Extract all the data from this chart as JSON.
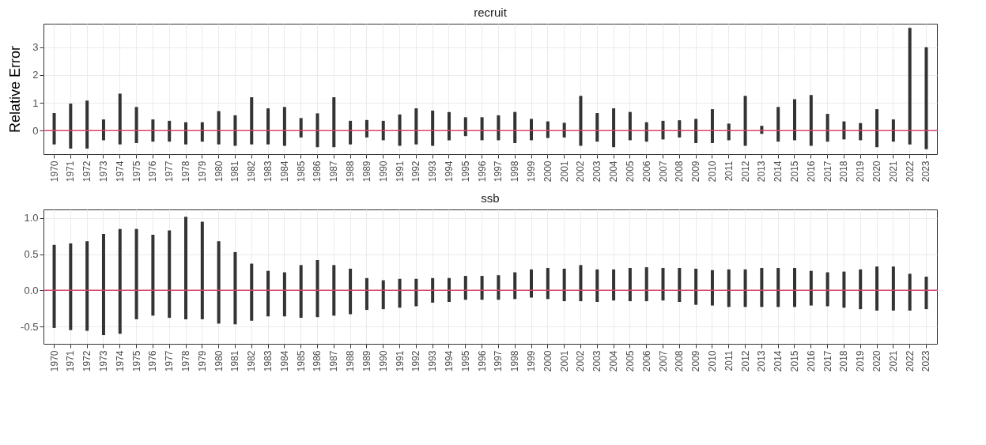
{
  "chart_data": [
    {
      "type": "bar",
      "title": "recruit",
      "ylabel": "Relative Error",
      "color": "#333333",
      "grid": true,
      "categories": [
        "1970",
        "1971",
        "1972",
        "1973",
        "1974",
        "1975",
        "1976",
        "1977",
        "1978",
        "1979",
        "1980",
        "1981",
        "1982",
        "1983",
        "1984",
        "1985",
        "1986",
        "1987",
        "1988",
        "1989",
        "1990",
        "1991",
        "1992",
        "1993",
        "1994",
        "1995",
        "1996",
        "1997",
        "1998",
        "1999",
        "2000",
        "2001",
        "2002",
        "2003",
        "2004",
        "2005",
        "2006",
        "2007",
        "2008",
        "2009",
        "2010",
        "2011",
        "2012",
        "2013",
        "2014",
        "2015",
        "2016",
        "2017",
        "2018",
        "2019",
        "2020",
        "2021",
        "2022",
        "2023"
      ],
      "base": [
        -0.5,
        -0.65,
        -0.65,
        -0.35,
        -0.5,
        -0.45,
        -0.4,
        -0.4,
        -0.5,
        -0.4,
        -0.5,
        -0.55,
        -0.5,
        -0.5,
        -0.55,
        -0.25,
        -0.6,
        -0.6,
        -0.5,
        -0.25,
        -0.35,
        -0.55,
        -0.5,
        -0.55,
        -0.35,
        -0.2,
        -0.35,
        -0.35,
        -0.45,
        -0.35,
        -0.27,
        -0.25,
        -0.55,
        -0.4,
        -0.6,
        -0.35,
        -0.4,
        -0.32,
        -0.25,
        -0.45,
        -0.45,
        -0.35,
        -0.55,
        -0.12,
        -0.4,
        -0.35,
        -0.55,
        -0.4,
        -0.32,
        -0.35,
        -0.6,
        -0.4,
        -0.5,
        -0.67
      ],
      "values": [
        1.13,
        1.62,
        1.73,
        0.75,
        1.83,
        1.3,
        0.8,
        0.75,
        0.8,
        0.7,
        1.2,
        1.1,
        1.7,
        1.3,
        1.4,
        0.7,
        1.22,
        1.8,
        0.85,
        0.63,
        0.7,
        1.13,
        1.3,
        1.27,
        1.02,
        0.68,
        0.83,
        0.9,
        1.12,
        0.77,
        0.6,
        0.53,
        1.8,
        1.03,
        1.4,
        1.02,
        0.7,
        0.67,
        0.62,
        0.87,
        1.22,
        0.6,
        1.8,
        0.29,
        1.25,
        1.48,
        1.83,
        1.0,
        0.65,
        0.62,
        1.37,
        0.8,
        4.2,
        3.67
      ],
      "ylim": [
        -0.85,
        3.85
      ],
      "yticks": [
        0,
        1,
        2,
        3
      ],
      "ref_lines": [
        {
          "axis": "y",
          "value": 0,
          "color": "#d6456b"
        }
      ]
    },
    {
      "type": "bar",
      "title": "ssb",
      "color": "#333333",
      "grid": true,
      "categories": [
        "1970",
        "1971",
        "1972",
        "1973",
        "1974",
        "1975",
        "1976",
        "1977",
        "1978",
        "1979",
        "1980",
        "1981",
        "1982",
        "1983",
        "1984",
        "1985",
        "1986",
        "1987",
        "1988",
        "1989",
        "1990",
        "1991",
        "1992",
        "1993",
        "1994",
        "1995",
        "1996",
        "1997",
        "1998",
        "1999",
        "2000",
        "2001",
        "2002",
        "2003",
        "2004",
        "2005",
        "2006",
        "2007",
        "2008",
        "2009",
        "2010",
        "2011",
        "2012",
        "2013",
        "2014",
        "2015",
        "2016",
        "2017",
        "2018",
        "2019",
        "2020",
        "2021",
        "2022",
        "2023"
      ],
      "base": [
        -0.52,
        -0.55,
        -0.56,
        -0.62,
        -0.6,
        -0.4,
        -0.35,
        -0.38,
        -0.4,
        -0.4,
        -0.46,
        -0.47,
        -0.42,
        -0.36,
        -0.36,
        -0.38,
        -0.37,
        -0.35,
        -0.33,
        -0.27,
        -0.26,
        -0.24,
        -0.22,
        -0.17,
        -0.16,
        -0.13,
        -0.13,
        -0.13,
        -0.12,
        -0.1,
        -0.12,
        -0.15,
        -0.15,
        -0.16,
        -0.14,
        -0.15,
        -0.15,
        -0.14,
        -0.16,
        -0.2,
        -0.21,
        -0.23,
        -0.23,
        -0.23,
        -0.23,
        -0.23,
        -0.21,
        -0.22,
        -0.24,
        -0.26,
        -0.28,
        -0.28,
        -0.28,
        -0.26
      ],
      "values": [
        1.15,
        1.2,
        1.24,
        1.4,
        1.45,
        1.25,
        1.12,
        1.21,
        1.42,
        1.35,
        1.14,
        1.0,
        0.79,
        0.63,
        0.61,
        0.73,
        0.79,
        0.7,
        0.63,
        0.44,
        0.4,
        0.4,
        0.38,
        0.34,
        0.33,
        0.33,
        0.33,
        0.34,
        0.37,
        0.39,
        0.43,
        0.45,
        0.5,
        0.45,
        0.43,
        0.46,
        0.47,
        0.45,
        0.47,
        0.5,
        0.49,
        0.52,
        0.52,
        0.54,
        0.54,
        0.54,
        0.48,
        0.47,
        0.5,
        0.55,
        0.61,
        0.61,
        0.51,
        0.45
      ],
      "ylim": [
        -0.74,
        1.12
      ],
      "yticks": [
        {
          "value": -0.5,
          "label": "-0.5"
        },
        {
          "value": 0,
          "label": "0.0"
        },
        {
          "value": 0.5,
          "label": "0.5"
        },
        {
          "value": 1,
          "label": "1.0"
        }
      ],
      "ref_lines": [
        {
          "axis": "y",
          "value": 0,
          "color": "#d6456b"
        }
      ]
    }
  ]
}
